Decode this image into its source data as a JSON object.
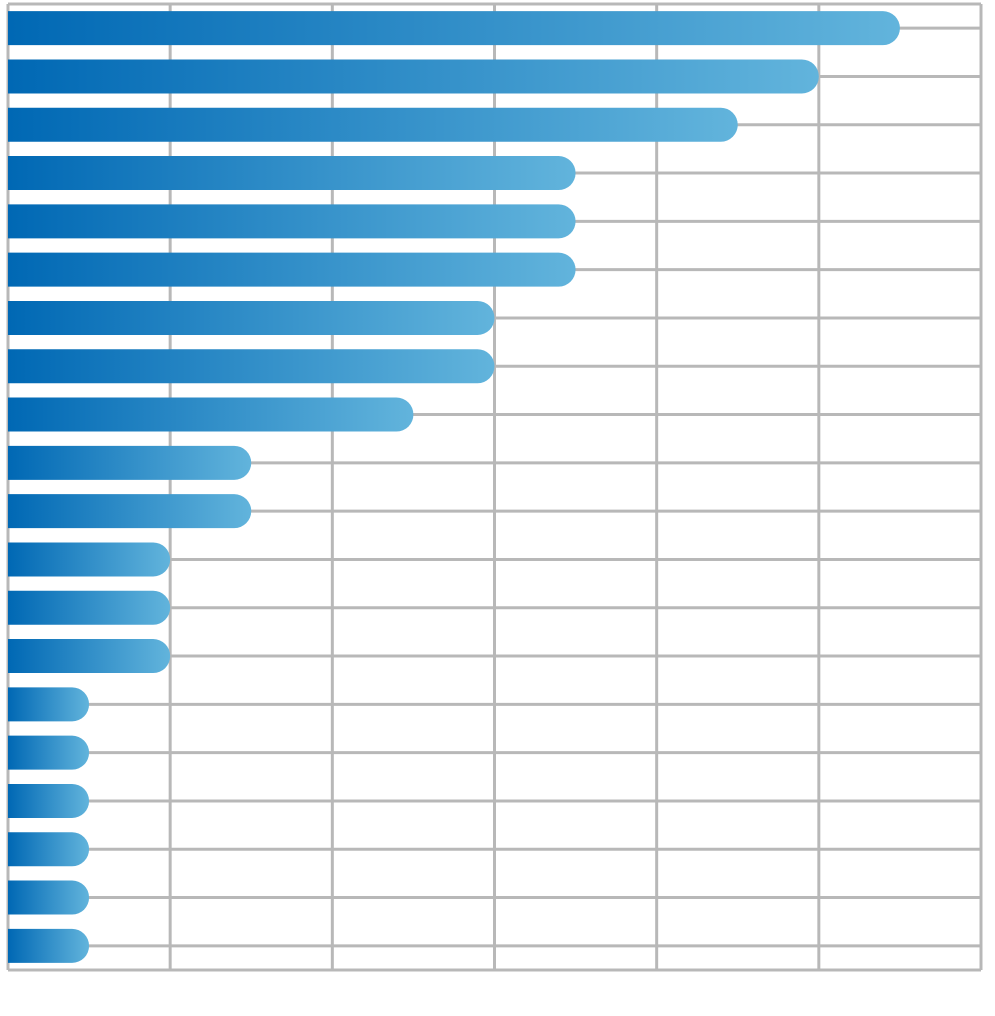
{
  "chart_data": {
    "type": "bar",
    "orientation": "horizontal",
    "values": [
      11,
      10,
      9,
      7,
      7,
      7,
      6,
      6,
      5,
      3,
      3,
      2,
      2,
      2,
      1,
      1,
      1,
      1,
      1,
      1
    ],
    "xlim": [
      0,
      12
    ],
    "x_gridline_step": 2,
    "grid": true,
    "legend": "none",
    "colors": {
      "bar_start": "#0068b4",
      "bar_end": "#62b4dc",
      "grid": "#b8b8b8",
      "background": "#ffffff"
    }
  }
}
